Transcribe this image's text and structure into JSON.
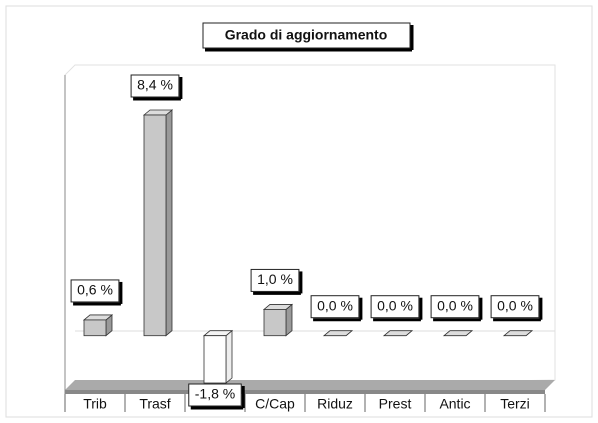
{
  "chart_data": {
    "type": "bar",
    "title": "Grado di aggiornamento",
    "categories": [
      "Trib",
      "Trasf",
      null,
      "C/Cap",
      "Riduz",
      "Prest",
      "Antic",
      "Terzi"
    ],
    "values": [
      0.6,
      8.4,
      -1.8,
      1.0,
      0,
      0,
      0,
      0
    ],
    "value_labels": [
      "0,6 %",
      "8,4 %",
      "-1,8 %",
      "1,0 %",
      "0,0 %",
      "0,0 %",
      "0,0 %",
      "0,0 %"
    ],
    "color": "#c8c8c8",
    "negative_color": "#ffffff"
  }
}
